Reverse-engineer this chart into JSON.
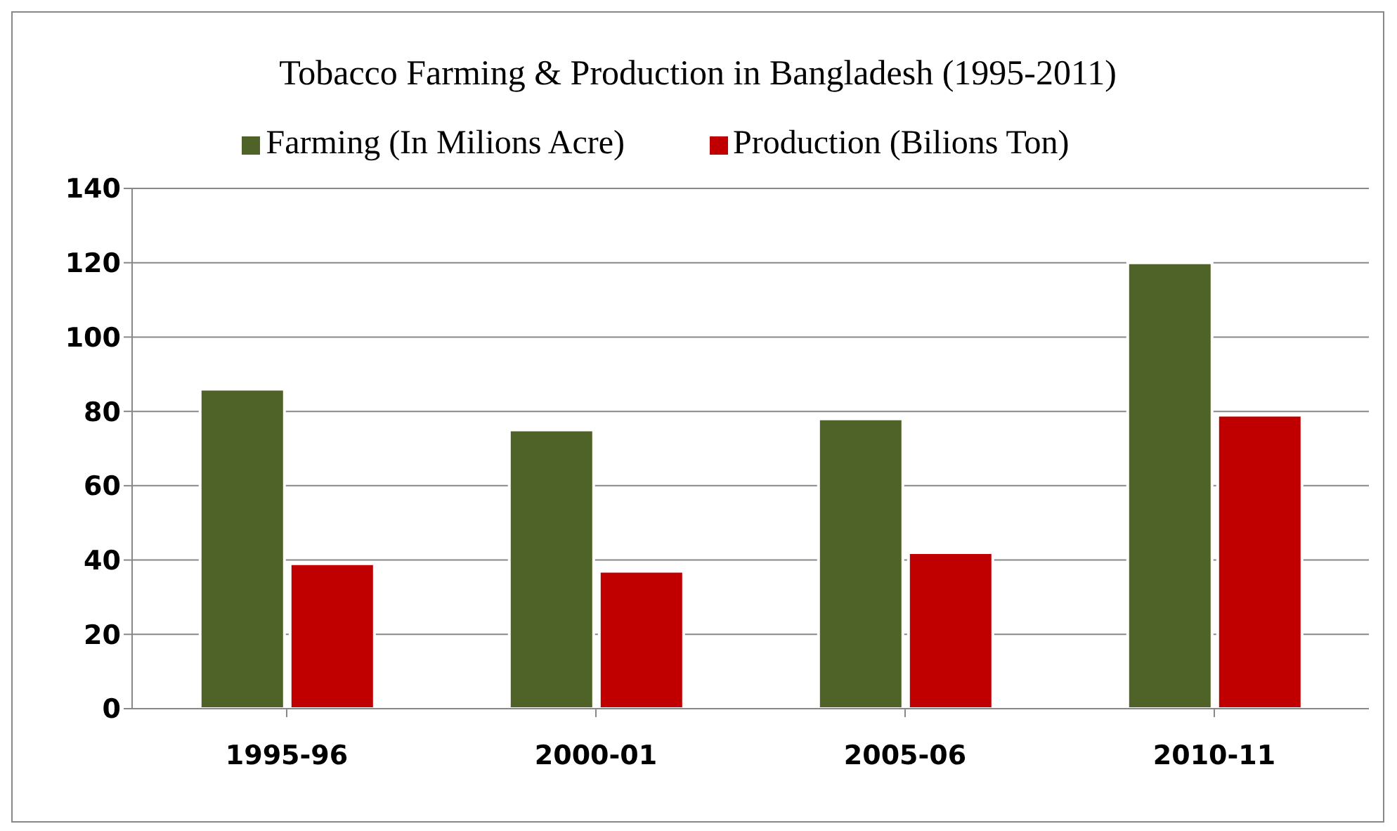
{
  "chart_data": {
    "type": "bar",
    "title": "Tobacco Farming & Production in Bangladesh (1995-2011)",
    "categories": [
      "1995-96",
      "2000-01",
      "2005-06",
      "2010-11"
    ],
    "series": [
      {
        "name": "Farming (In Milions Acre)",
        "color": "#4f6228",
        "values": [
          86,
          75,
          78,
          120
        ]
      },
      {
        "name": "Production (Bilions Ton)",
        "color": "#c00000",
        "values": [
          39,
          37,
          42,
          79
        ]
      }
    ],
    "ylim": [
      0,
      140
    ],
    "yticks": [
      0,
      20,
      40,
      60,
      80,
      100,
      120,
      140
    ],
    "grid": "y",
    "legend": "top"
  }
}
